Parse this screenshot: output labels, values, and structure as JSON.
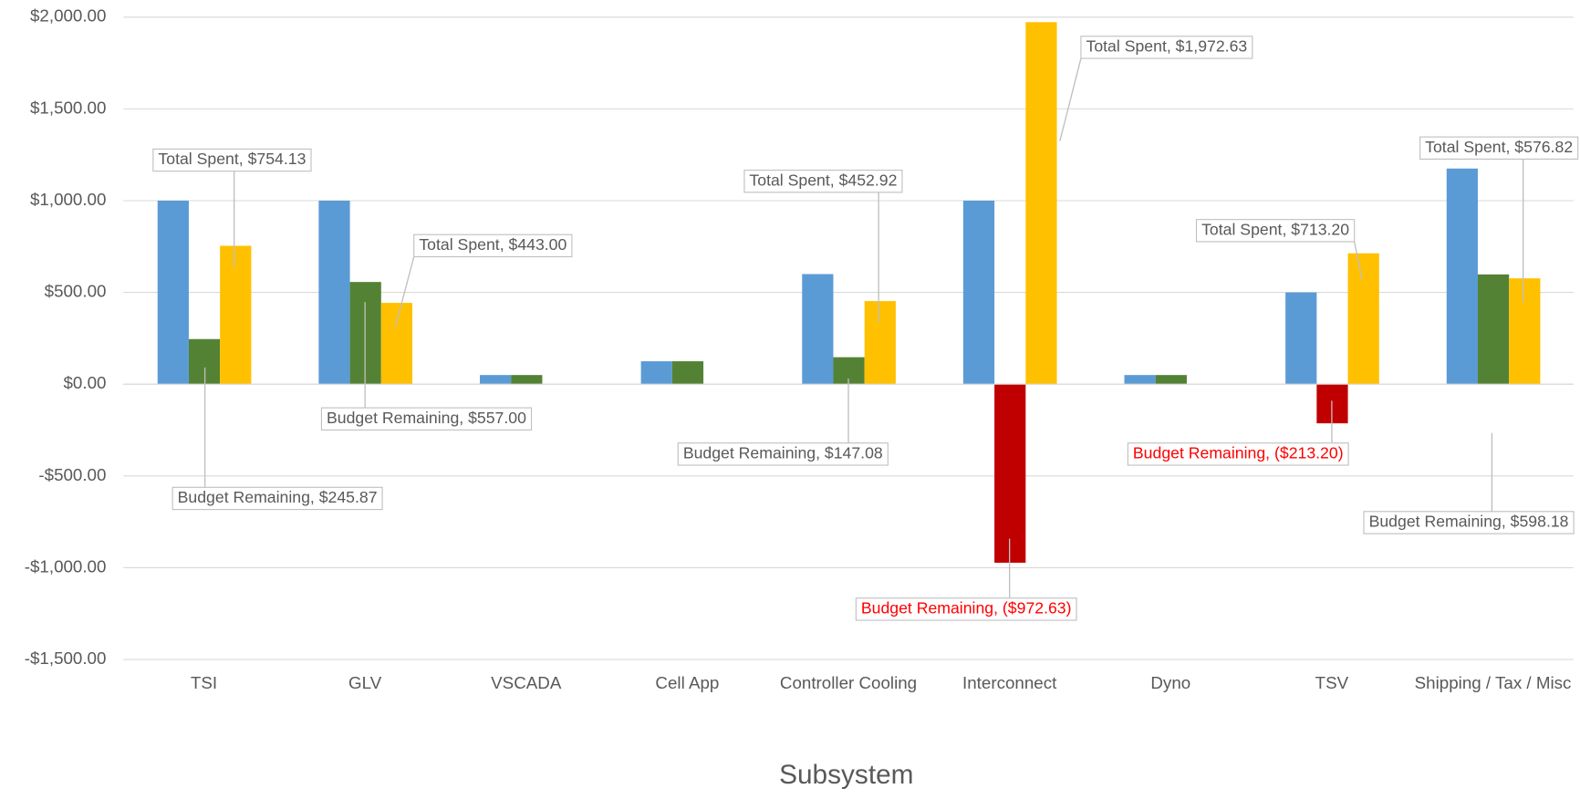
{
  "chart_data": {
    "type": "bar",
    "x_label": "Subsystem",
    "categories": [
      "TSI",
      "GLV",
      "VSCADA",
      "Cell App",
      "Controller Cooling",
      "Interconnect",
      "Dyno",
      "TSV",
      "Shipping / Tax / Misc"
    ],
    "series": [
      {
        "color": "#5b9bd5",
        "values": [
          1000,
          1000,
          50,
          125,
          600,
          1000,
          50,
          500,
          1175
        ]
      },
      {
        "color": "#548235",
        "negative_color": "#c00000",
        "negative_label_color": "#ff0000",
        "values": [
          245.87,
          557.0,
          50,
          125,
          147.08,
          -972.63,
          50,
          -213.2,
          598.18
        ],
        "value_labels": [
          "Budget Remaining, $245.87",
          "Budget Remaining, $557.00",
          null,
          null,
          "Budget Remaining, $147.08",
          "Budget Remaining, ($972.63)",
          null,
          "Budget Remaining, ($213.20)",
          "Budget Remaining, $598.18"
        ]
      },
      {
        "color": "#ffc000",
        "values": [
          754.13,
          443.0,
          0,
          0,
          452.92,
          1972.63,
          0,
          713.2,
          576.82
        ],
        "value_labels": [
          "Total Spent, $754.13",
          "Total Spent, $443.00",
          null,
          null,
          "Total Spent, $452.92",
          "Total Spent, $1,972.63",
          null,
          "Total Spent, $713.20",
          "Total Spent, $576.82"
        ]
      }
    ],
    "ylim": [
      -1500,
      2000
    ],
    "yticks": [
      {
        "value": -1500,
        "label": "-$1,500.00"
      },
      {
        "value": -1000,
        "label": "-$1,000.00"
      },
      {
        "value": -500,
        "label": "-$500.00"
      },
      {
        "value": 0,
        "label": "$0.00"
      },
      {
        "value": 500,
        "label": "$500.00"
      },
      {
        "value": 1000,
        "label": "$1,000.00"
      },
      {
        "value": 1500,
        "label": "$1,500.00"
      },
      {
        "value": 2000,
        "label": "$2,000.00"
      }
    ],
    "grid": true
  }
}
